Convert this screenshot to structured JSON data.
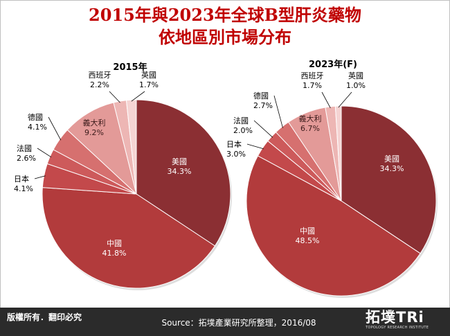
{
  "header": {
    "title_line1": "2015年與2023年全球B型肝炎藥物",
    "title_line2": "依地區別市場分布"
  },
  "footer": {
    "copyright": "版權所有．翻印必究",
    "source": "Source：拓墣產業研究所整理，2016/08",
    "logo_main": "拓墣TRi",
    "logo_sub": "TOPOLOGY RESEARCH INSTITUTE"
  },
  "chart_data": [
    {
      "type": "pie",
      "title": "2015年",
      "slices": [
        {
          "label": "美國",
          "value": 34.3,
          "display": "34.3%",
          "color": "#8b2f33"
        },
        {
          "label": "中國",
          "value": 41.8,
          "display": "41.8%",
          "color": "#b23b3c"
        },
        {
          "label": "日本",
          "value": 4.1,
          "display": "4.1%",
          "color": "#c3494b"
        },
        {
          "label": "法國",
          "value": 2.6,
          "display": "2.6%",
          "color": "#cd5a5b"
        },
        {
          "label": "德國",
          "value": 4.1,
          "display": "4.1%",
          "color": "#d6706f"
        },
        {
          "label": "義大利",
          "value": 9.2,
          "display": "9.2%",
          "color": "#e39a98"
        },
        {
          "label": "西班牙",
          "value": 2.2,
          "display": "2.2%",
          "color": "#edb6b4"
        },
        {
          "label": "英國",
          "value": 1.7,
          "display": "1.7%",
          "color": "#f5d4d3"
        }
      ]
    },
    {
      "type": "pie",
      "title": "2023年(F)",
      "slices": [
        {
          "label": "美國",
          "value": 34.3,
          "display": "34.3%",
          "color": "#8b2f33"
        },
        {
          "label": "中國",
          "value": 48.5,
          "display": "48.5%",
          "color": "#b23b3c"
        },
        {
          "label": "日本",
          "value": 3.0,
          "display": "3.0%",
          "color": "#c3494b"
        },
        {
          "label": "法國",
          "value": 2.0,
          "display": "2.0%",
          "color": "#cd5a5b"
        },
        {
          "label": "德國",
          "value": 2.7,
          "display": "2.7%",
          "color": "#d6706f"
        },
        {
          "label": "義大利",
          "value": 6.7,
          "display": "6.7%",
          "color": "#e39a98"
        },
        {
          "label": "西班牙",
          "value": 1.7,
          "display": "1.7%",
          "color": "#edb6b4"
        },
        {
          "label": "英國",
          "value": 1.0,
          "display": "1.0%",
          "color": "#f5d4d3"
        }
      ]
    }
  ]
}
